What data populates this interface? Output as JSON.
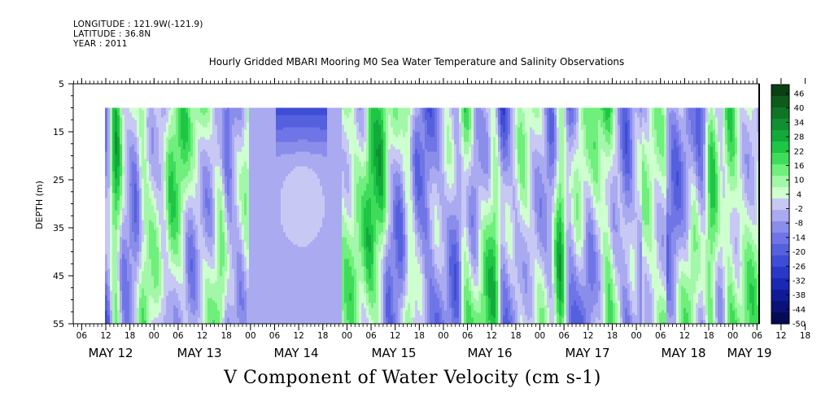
{
  "header": {
    "longitude": "LONGITUDE : 121.9W(-121.9)",
    "latitude": "LATITUDE : 36.8N",
    "year": "YEAR : 2011"
  },
  "chart_data": {
    "type": "heatmap",
    "title": "Hourly Gridded MBARI Mooring M0 Sea Water Temperature and Salinity Observations",
    "xlabel": "V Component of Water Velocity (cm s-1)",
    "ylabel": "DEPTH (m)",
    "ylim": [
      55,
      5
    ],
    "y_ticks": [
      5,
      15,
      25,
      35,
      45,
      55
    ],
    "data_depth_range": [
      10,
      55
    ],
    "hour_tick_labels": [
      "06",
      "12",
      "18",
      "00",
      "06",
      "12",
      "18",
      "00",
      "06",
      "12",
      "18",
      "00",
      "06",
      "12",
      "18",
      "00",
      "06",
      "12",
      "18",
      "00",
      "06",
      "12",
      "18",
      "00",
      "06",
      "12",
      "18",
      "00",
      "06",
      "12",
      "18",
      "00"
    ],
    "day_labels": [
      "MAY 12",
      "MAY 13",
      "MAY 14",
      "MAY 15",
      "MAY 16",
      "MAY 17",
      "MAY 18",
      "MAY 19"
    ],
    "colorbar": {
      "labels": [
        "46",
        "40",
        "34",
        "28",
        "22",
        "16",
        "10",
        "4",
        "-2",
        "-8",
        "-14",
        "-20",
        "-26",
        "-32",
        "-38",
        "-44",
        "-50"
      ],
      "range": [
        -50,
        52
      ],
      "colors_top_to_bottom": [
        "#0b3f14",
        "#0e5a1c",
        "#0f7526",
        "#109030",
        "#12aa3a",
        "#1ec646",
        "#3fdc5a",
        "#6fef7c",
        "#a3f7a8",
        "#ceffce",
        "#c8c8f5",
        "#a9aaf0",
        "#8b8deb",
        "#6f75e6",
        "#5560de",
        "#3e4cd6",
        "#2a38c8",
        "#1b28b3",
        "#101b98",
        "#0a1277",
        "#050a55"
      ]
    },
    "depth_levels": [
      10,
      55
    ],
    "day_start_hour_of_frame": 4,
    "hours_span": 183
  }
}
